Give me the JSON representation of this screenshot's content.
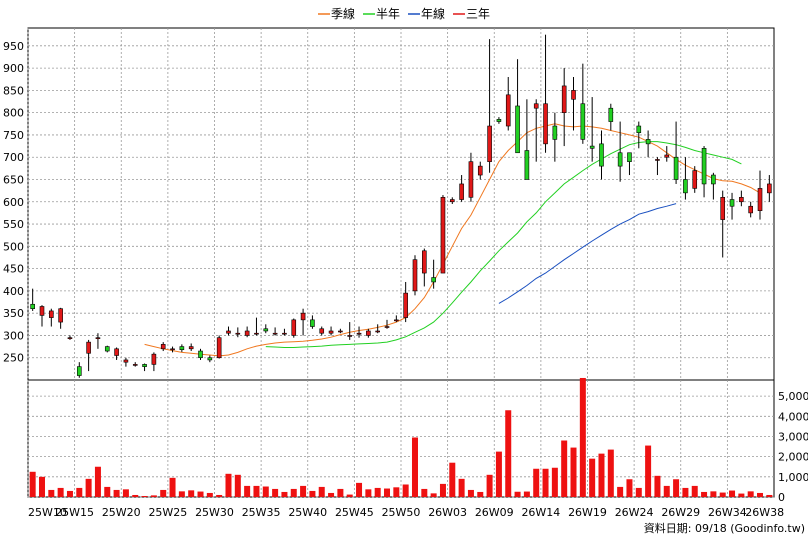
{
  "legend": [
    {
      "name": "季線",
      "color": "#f07820"
    },
    {
      "name": "半年",
      "color": "#22d022"
    },
    {
      "name": "年線",
      "color": "#1a50c0"
    },
    {
      "name": "三年",
      "color": "#e01818"
    }
  ],
  "source_label": "資料日期: 09/18  (Goodinfo.tw)",
  "chart_data": {
    "type": "candlestick",
    "grid": true,
    "legend_position": "top-center",
    "price_axis": {
      "min": 200,
      "max": 990,
      "ticks": [
        250,
        300,
        350,
        400,
        450,
        500,
        550,
        600,
        650,
        700,
        750,
        800,
        850,
        900,
        950
      ]
    },
    "volume_axis": {
      "min": 0,
      "max": 5800,
      "ticks": [
        0,
        1000,
        2000,
        3000,
        4000,
        5000
      ],
      "tick_labels": [
        "0",
        "1,000",
        "2,000",
        "3,000",
        "4,000",
        "5,000"
      ]
    },
    "x_labels": [
      {
        "i": 0,
        "label": "25W10"
      },
      {
        "i": 5,
        "label": "25W15"
      },
      {
        "i": 10,
        "label": "25W20"
      },
      {
        "i": 15,
        "label": "25W25"
      },
      {
        "i": 20,
        "label": "25W30"
      },
      {
        "i": 25,
        "label": "25W35"
      },
      {
        "i": 30,
        "label": "25W40"
      },
      {
        "i": 35,
        "label": "25W45"
      },
      {
        "i": 40,
        "label": "25W50"
      },
      {
        "i": 45,
        "label": "26W03"
      },
      {
        "i": 50,
        "label": "26W09"
      },
      {
        "i": 55,
        "label": "26W14"
      },
      {
        "i": 60,
        "label": "26W19"
      },
      {
        "i": 65,
        "label": "26W24"
      },
      {
        "i": 70,
        "label": "26W29"
      },
      {
        "i": 75,
        "label": "26W34"
      },
      {
        "i": 79,
        "label": "26W38"
      }
    ],
    "candles": [
      [
        370,
        360,
        405,
        355
      ],
      [
        345,
        365,
        368,
        320
      ],
      [
        340,
        355,
        360,
        320
      ],
      [
        330,
        360,
        362,
        315
      ],
      [
        295,
        295,
        300,
        290
      ],
      [
        230,
        210,
        240,
        205
      ],
      [
        260,
        285,
        290,
        220
      ],
      [
        295,
        295,
        305,
        270
      ],
      [
        275,
        265,
        277,
        262
      ],
      [
        255,
        270,
        273,
        245
      ],
      [
        240,
        245,
        250,
        230
      ],
      [
        235,
        235,
        240,
        230
      ],
      [
        235,
        230,
        237,
        220
      ],
      [
        235,
        258,
        262,
        220
      ],
      [
        270,
        280,
        285,
        265
      ],
      [
        270,
        270,
        275,
        262
      ],
      [
        275,
        268,
        280,
        263
      ],
      [
        270,
        275,
        282,
        265
      ],
      [
        265,
        250,
        270,
        245
      ],
      [
        250,
        245,
        255,
        240
      ],
      [
        250,
        295,
        300,
        248
      ],
      [
        305,
        310,
        320,
        300
      ],
      [
        305,
        305,
        318,
        296
      ],
      [
        300,
        310,
        320,
        296
      ],
      [
        305,
        305,
        340,
        300
      ],
      [
        315,
        310,
        325,
        305
      ],
      [
        305,
        305,
        318,
        300
      ],
      [
        305,
        305,
        315,
        300
      ],
      [
        300,
        335,
        338,
        295
      ],
      [
        335,
        350,
        360,
        300
      ],
      [
        335,
        320,
        345,
        315
      ],
      [
        305,
        315,
        320,
        300
      ],
      [
        305,
        310,
        320,
        300
      ],
      [
        310,
        310,
        315,
        305
      ],
      [
        300,
        300,
        330,
        290
      ],
      [
        305,
        305,
        320,
        295
      ],
      [
        300,
        310,
        315,
        295
      ],
      [
        310,
        310,
        325,
        305
      ],
      [
        320,
        320,
        335,
        315
      ],
      [
        335,
        335,
        345,
        330
      ],
      [
        340,
        395,
        420,
        330
      ],
      [
        400,
        470,
        480,
        390
      ],
      [
        440,
        490,
        495,
        410
      ],
      [
        430,
        420,
        470,
        405
      ],
      [
        440,
        610,
        615,
        440
      ],
      [
        600,
        605,
        610,
        595
      ],
      [
        605,
        640,
        660,
        600
      ],
      [
        610,
        690,
        710,
        600
      ],
      [
        660,
        680,
        690,
        650
      ],
      [
        690,
        770,
        965,
        665
      ],
      [
        785,
        780,
        790,
        775
      ],
      [
        770,
        840,
        880,
        760
      ],
      [
        815,
        710,
        920,
        710
      ],
      [
        715,
        650,
        830,
        650
      ],
      [
        810,
        820,
        830,
        690
      ],
      [
        730,
        820,
        975,
        710
      ],
      [
        770,
        740,
        800,
        690
      ],
      [
        800,
        860,
        900,
        725
      ],
      [
        830,
        850,
        880,
        760
      ],
      [
        820,
        740,
        910,
        730
      ],
      [
        725,
        720,
        835,
        690
      ],
      [
        730,
        680,
        760,
        650
      ],
      [
        810,
        780,
        820,
        760
      ],
      [
        710,
        680,
        780,
        645
      ],
      [
        710,
        690,
        700,
        660
      ],
      [
        770,
        755,
        780,
        720
      ],
      [
        740,
        730,
        760,
        700
      ],
      [
        695,
        695,
        700,
        660
      ],
      [
        700,
        705,
        725,
        690
      ],
      [
        700,
        650,
        780,
        640
      ],
      [
        650,
        620,
        700,
        605
      ],
      [
        630,
        670,
        680,
        620
      ],
      [
        720,
        640,
        725,
        610
      ],
      [
        660,
        640,
        665,
        605
      ],
      [
        560,
        610,
        625,
        475
      ],
      [
        605,
        590,
        620,
        560
      ],
      [
        600,
        610,
        625,
        590
      ],
      [
        575,
        590,
        600,
        565
      ],
      [
        580,
        630,
        670,
        560
      ],
      [
        620,
        640,
        660,
        600
      ]
    ],
    "volume": [
      1250,
      1000,
      350,
      450,
      300,
      450,
      900,
      1500,
      500,
      350,
      380,
      100,
      50,
      80,
      350,
      950,
      280,
      330,
      270,
      200,
      100,
      1150,
      1100,
      550,
      550,
      520,
      400,
      250,
      400,
      550,
      300,
      500,
      200,
      400,
      120,
      700,
      380,
      450,
      420,
      480,
      620,
      2950,
      400,
      180,
      650,
      1700,
      900,
      350,
      250,
      1100,
      2250,
      4300,
      260,
      270,
      1400,
      1400,
      1450,
      2800,
      2450,
      5900,
      1900,
      2150,
      2350,
      500,
      880,
      450,
      2550,
      1050,
      550,
      880,
      450,
      550,
      250,
      280,
      220,
      320,
      170,
      280,
      200,
      100
    ],
    "series": [
      {
        "name": "季線",
        "start": 12,
        "values": [
          280,
          275,
          270,
          266,
          262,
          260,
          258,
          256,
          254,
          256,
          262,
          270,
          276,
          280,
          283,
          285,
          286,
          287,
          289,
          292,
          296,
          302,
          307,
          311,
          314,
          318,
          323,
          330,
          340,
          360,
          385,
          420,
          460,
          500,
          540,
          570,
          610,
          650,
          690,
          715,
          735,
          755,
          765,
          770,
          775,
          770,
          768,
          770,
          768,
          765,
          760,
          755,
          750,
          745,
          735,
          725,
          710,
          695,
          682,
          672,
          662,
          652,
          647,
          646,
          640,
          632,
          620
        ]
      },
      {
        "name": "半年",
        "start": 25,
        "values": [
          275,
          274,
          273,
          273,
          274,
          275,
          276,
          278,
          279,
          280,
          281,
          282,
          283,
          285,
          290,
          297,
          307,
          317,
          330,
          350,
          373,
          397,
          420,
          445,
          467,
          490,
          510,
          530,
          555,
          575,
          600,
          620,
          640,
          655,
          670,
          684,
          696,
          708,
          718,
          728,
          733,
          735,
          735,
          732,
          728,
          722,
          715,
          710,
          705,
          700,
          695,
          685
        ]
      },
      {
        "name": "年線",
        "start": 50,
        "values": [
          372,
          384,
          398,
          412,
          428,
          440,
          455,
          470,
          484,
          498,
          512,
          525,
          538,
          550,
          560,
          572,
          578,
          585,
          590,
          596
        ]
      }
    ]
  }
}
